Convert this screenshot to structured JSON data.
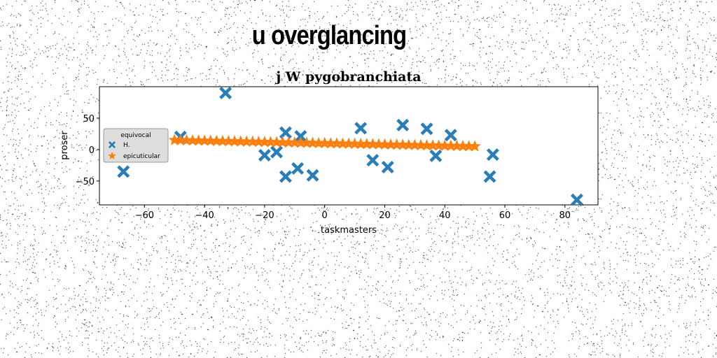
{
  "figure": {
    "suptitle": "u overglancing"
  },
  "chart_data": {
    "type": "scatter",
    "title": "j W pygobranchiata",
    "xlabel": "taskmasters",
    "ylabel": "proser",
    "xlim": [
      -75,
      91
    ],
    "ylim": [
      -88,
      100
    ],
    "xticks": [
      -60,
      -40,
      -20,
      0,
      20,
      40,
      60,
      80
    ],
    "yticks": [
      -50,
      0,
      50
    ],
    "grid": false,
    "legend": {
      "title": "equivocal",
      "placement": "center-left",
      "entries": [
        "H.",
        "epicuticular"
      ]
    },
    "colors": {
      "H.": "#1f77b4",
      "epicuticular": "#ff7f0e"
    },
    "series": [
      {
        "name": "H.",
        "marker": "X",
        "x": [
          -67,
          -48,
          -33,
          -20,
          -16,
          -13,
          -13,
          -9,
          -8,
          -4,
          12,
          16,
          21,
          26,
          34,
          37,
          42,
          55,
          56,
          84
        ],
        "y": [
          -35,
          20,
          90,
          -9,
          -4,
          27,
          -43,
          -30,
          21,
          -41,
          34,
          -17,
          -28,
          39,
          33,
          -10,
          23,
          -43,
          -8,
          -80
        ]
      },
      {
        "name": "epicuticular",
        "marker": "star",
        "x": [
          -50.0,
          -48.0,
          -46.0,
          -44.0,
          -42.0,
          -40.0,
          -38.0,
          -36.0,
          -34.0,
          -32.0,
          -30.0,
          -28.0,
          -26.0,
          -24.0,
          -22.0,
          -20.0,
          -18.0,
          -16.0,
          -14.0,
          -12.0,
          -10.0,
          -8.0,
          -6.0,
          -4.0,
          -2.0,
          0.0,
          2.0,
          4.0,
          6.0,
          8.0,
          10.0,
          12.0,
          14.0,
          16.0,
          18.0,
          20.0,
          22.0,
          24.0,
          26.0,
          28.0,
          30.0,
          32.0,
          34.0,
          36.0,
          38.0,
          40.0,
          42.0,
          44.0,
          46.0,
          48.0,
          50.0
        ],
        "y": [
          15.0,
          14.8,
          14.6,
          14.4,
          14.2,
          14.0,
          13.8,
          13.6,
          13.4,
          13.2,
          13.0,
          12.8,
          12.6,
          12.4,
          12.2,
          12.0,
          11.8,
          11.6,
          11.4,
          11.2,
          11.0,
          10.8,
          10.6,
          10.4,
          10.2,
          10.0,
          9.8,
          9.6,
          9.4,
          9.2,
          9.0,
          8.8,
          8.6,
          8.4,
          8.2,
          8.0,
          7.8,
          7.6,
          7.4,
          7.2,
          7.0,
          6.8,
          6.6,
          6.4,
          6.2,
          6.0,
          5.8,
          5.6,
          5.4,
          5.2,
          5.0
        ]
      }
    ]
  }
}
